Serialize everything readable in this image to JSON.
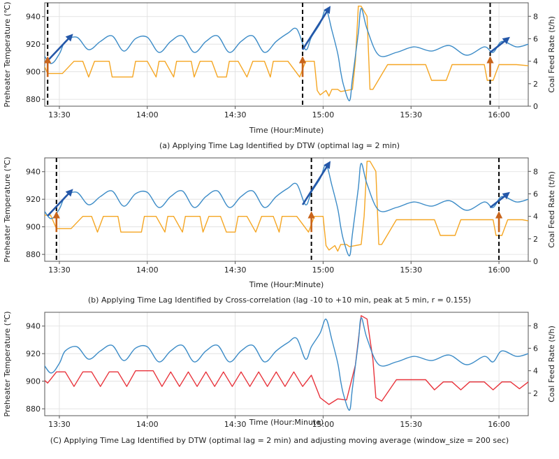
{
  "colors": {
    "temp_line": "#3b8bc7",
    "feed_line": "#f5a623",
    "feed_smooth": "#e8333b",
    "vline": "#000000",
    "arrow_blue": "#2457a8",
    "arrow_orange": "#c8641b",
    "grid": "#dddddd",
    "axis": "#555555"
  },
  "chart_data": [
    {
      "type": "line",
      "panel": "a",
      "caption": "(a) Applying Time Lag Identified by DTW (optimal lag = 2 min)",
      "xlabel": "Time (Hour:Minute)",
      "ylabel": "Preheater Temperature (℃)",
      "y2label": "Coal Feed Rate (t/h)",
      "xlim": [
        805,
        970
      ],
      "x_ticks": [
        810,
        840,
        870,
        900,
        930,
        960
      ],
      "x_tick_labels": [
        "13:30",
        "14:00",
        "14:30",
        "15:00",
        "15:30",
        "16:00"
      ],
      "ylim": [
        875,
        950
      ],
      "y_ticks": [
        880,
        900,
        920,
        940
      ],
      "y2lim": [
        0,
        9.2
      ],
      "y2_ticks": [
        0,
        2,
        4,
        6,
        8
      ],
      "grid": true,
      "feed_style": "raw",
      "temperature_series": {
        "name": "Preheater Temperature",
        "x": [
          796,
          800,
          803,
          807,
          810,
          812,
          816,
          820,
          824,
          828,
          832,
          836,
          840,
          844,
          848,
          852,
          856,
          860,
          864,
          868,
          872,
          876,
          880,
          884,
          888,
          891,
          894,
          896,
          899,
          901,
          903,
          905,
          906,
          907,
          909,
          910,
          912,
          913,
          915,
          919,
          925,
          931,
          937,
          943,
          949,
          955,
          958,
          961,
          966,
          970
        ],
        "y": [
          908,
          907,
          916,
          906,
          913,
          922,
          925,
          916,
          922,
          926,
          915,
          924,
          925,
          914,
          922,
          926,
          914,
          922,
          926,
          914,
          922,
          926,
          914,
          922,
          928,
          931,
          916,
          925,
          935,
          945,
          930,
          913,
          900,
          890,
          879,
          895,
          928,
          946,
          931,
          912,
          914,
          918,
          915,
          919,
          912,
          918,
          914,
          922,
          918,
          920
        ]
      },
      "feed_series": {
        "name": "Coal Feed Rate",
        "x": [
          800,
          802,
          804,
          806,
          811,
          815,
          818,
          820,
          822,
          827,
          828,
          835,
          836,
          840,
          843,
          844,
          846,
          849,
          850,
          855,
          856,
          858,
          862,
          864,
          867,
          868,
          871,
          874,
          876,
          880,
          882,
          883,
          888,
          892,
          894,
          897,
          898,
          899,
          901,
          902,
          903,
          905,
          906,
          910,
          911,
          912,
          913,
          915,
          916,
          917,
          922,
          935,
          937,
          942,
          944,
          955,
          956,
          958,
          960,
          966,
          970
        ],
        "y": [
          2.9,
          4.1,
          4.1,
          2.9,
          2.9,
          4.0,
          4.0,
          2.6,
          4.0,
          4.0,
          2.6,
          2.6,
          4.0,
          4.0,
          2.6,
          4.0,
          4.0,
          2.6,
          4.0,
          4.0,
          2.6,
          4.0,
          4.0,
          2.6,
          2.6,
          4.0,
          4.0,
          2.6,
          4.0,
          4.0,
          2.6,
          4.0,
          4.0,
          2.6,
          4.0,
          4.0,
          1.4,
          1.0,
          1.4,
          0.9,
          1.5,
          1.5,
          1.3,
          1.5,
          4.0,
          8.9,
          8.9,
          8.0,
          1.5,
          1.5,
          3.7,
          3.7,
          2.3,
          2.3,
          3.7,
          3.7,
          2.3,
          2.3,
          3.7,
          3.7,
          3.6
        ]
      },
      "vertical_lines_x": [
        806,
        893,
        957
      ],
      "blue_arrows": [
        [
          806,
          908,
          814,
          926
        ],
        [
          893,
          916,
          902,
          946
        ],
        [
          957,
          914,
          963,
          924
        ]
      ],
      "orange_arrows": [
        [
          806,
          2.6,
          806,
          4.2
        ],
        [
          893,
          2.6,
          893,
          4.2
        ],
        [
          957,
          2.6,
          957,
          4.2
        ]
      ]
    },
    {
      "type": "line",
      "panel": "b",
      "caption": "(b) Applying Time Lag Identified by Cross-correlation (lag -10 to +10 min, peak at 5 min, r = 0.155)",
      "xlabel": "Time (Hour:Minute)",
      "ylabel": "Preheater Temperature (℃)",
      "y2label": "Coal Feed Rate (t/h)",
      "xlim": [
        805,
        970
      ],
      "x_ticks": [
        810,
        840,
        870,
        900,
        930,
        960
      ],
      "x_tick_labels": [
        "13:30",
        "14:00",
        "14:30",
        "15:00",
        "15:30",
        "16:00"
      ],
      "ylim": [
        875,
        950
      ],
      "y_ticks": [
        880,
        900,
        920,
        940
      ],
      "y2lim": [
        0,
        9.2
      ],
      "y2_ticks": [
        0,
        2,
        4,
        6,
        8
      ],
      "grid": true,
      "feed_style": "raw",
      "temperature_series": {
        "name": "Preheater Temperature",
        "x": [
          796,
          800,
          803,
          807,
          810,
          812,
          816,
          820,
          824,
          828,
          832,
          836,
          840,
          844,
          848,
          852,
          856,
          860,
          864,
          868,
          872,
          876,
          880,
          884,
          888,
          891,
          894,
          896,
          899,
          901,
          903,
          905,
          906,
          907,
          909,
          910,
          912,
          913,
          915,
          919,
          925,
          931,
          937,
          943,
          949,
          955,
          958,
          961,
          966,
          970
        ],
        "y": [
          908,
          907,
          916,
          906,
          913,
          922,
          925,
          916,
          922,
          926,
          915,
          924,
          925,
          914,
          922,
          926,
          914,
          922,
          926,
          914,
          922,
          926,
          914,
          922,
          928,
          931,
          916,
          925,
          935,
          945,
          930,
          913,
          900,
          890,
          879,
          895,
          928,
          946,
          931,
          912,
          914,
          918,
          915,
          919,
          912,
          918,
          914,
          922,
          918,
          920
        ]
      },
      "feed_series": {
        "name": "Coal Feed Rate",
        "x": [
          803,
          805,
          807,
          809,
          814,
          818,
          821,
          823,
          825,
          830,
          831,
          838,
          839,
          843,
          846,
          847,
          849,
          852,
          853,
          858,
          859,
          861,
          865,
          867,
          870,
          871,
          874,
          877,
          879,
          883,
          885,
          886,
          891,
          895,
          897,
          900,
          901,
          902,
          904,
          905,
          906,
          908,
          909,
          913,
          914,
          915,
          916,
          918,
          919,
          920,
          925,
          938,
          940,
          945,
          947,
          958,
          959,
          961,
          963,
          968,
          970
        ],
        "y": [
          2.9,
          4.1,
          4.1,
          2.9,
          2.9,
          4.0,
          4.0,
          2.6,
          4.0,
          4.0,
          2.6,
          2.6,
          4.0,
          4.0,
          2.6,
          4.0,
          4.0,
          2.6,
          4.0,
          4.0,
          2.6,
          4.0,
          4.0,
          2.6,
          2.6,
          4.0,
          4.0,
          2.6,
          4.0,
          4.0,
          2.6,
          4.0,
          4.0,
          2.6,
          4.0,
          4.0,
          1.4,
          1.0,
          1.4,
          0.9,
          1.5,
          1.5,
          1.3,
          1.5,
          4.0,
          8.9,
          8.9,
          8.0,
          1.5,
          1.5,
          3.7,
          3.7,
          2.3,
          2.3,
          3.7,
          3.7,
          2.3,
          2.3,
          3.7,
          3.7,
          3.6
        ]
      },
      "vertical_lines_x": [
        809,
        896,
        960
      ],
      "blue_arrows": [
        [
          806,
          908,
          814,
          926
        ],
        [
          893,
          916,
          902,
          946
        ],
        [
          957,
          914,
          963,
          924
        ]
      ],
      "orange_arrows": [
        [
          809,
          2.6,
          809,
          4.2
        ],
        [
          896,
          2.6,
          896,
          4.2
        ],
        [
          960,
          2.6,
          960,
          4.2
        ]
      ]
    },
    {
      "type": "line",
      "panel": "c",
      "caption": "(C) Applying Time Lag Identified by DTW (optimal lag = 2 min) and adjusting moving average (window_size = 200 sec)",
      "xlabel": "Time (Hour:Minute)",
      "ylabel": "Preheater Temperature (℃)",
      "y2label": "Coal Feed Rate (t/h)",
      "xlim": [
        805,
        970
      ],
      "x_ticks": [
        810,
        840,
        870,
        900,
        930,
        960
      ],
      "x_tick_labels": [
        "13:30",
        "14:00",
        "14:30",
        "15:00",
        "15:30",
        "16:00"
      ],
      "ylim": [
        875,
        950
      ],
      "y_ticks": [
        880,
        900,
        920,
        940
      ],
      "y2lim": [
        0,
        9.2
      ],
      "y2_ticks": [
        2,
        4,
        6,
        8
      ],
      "grid": true,
      "feed_style": "smoothed",
      "temperature_series": {
        "name": "Preheater Temperature",
        "x": [
          796,
          800,
          803,
          807,
          810,
          812,
          816,
          820,
          824,
          828,
          832,
          836,
          840,
          844,
          848,
          852,
          856,
          860,
          864,
          868,
          872,
          876,
          880,
          884,
          888,
          891,
          894,
          896,
          899,
          901,
          903,
          905,
          906,
          907,
          909,
          910,
          912,
          913,
          915,
          919,
          925,
          931,
          937,
          943,
          949,
          955,
          958,
          961,
          966,
          970
        ],
        "y": [
          908,
          907,
          916,
          906,
          913,
          922,
          925,
          916,
          922,
          926,
          915,
          924,
          925,
          914,
          922,
          926,
          914,
          922,
          926,
          914,
          922,
          926,
          914,
          922,
          928,
          931,
          916,
          925,
          935,
          945,
          930,
          913,
          900,
          890,
          879,
          895,
          928,
          946,
          931,
          912,
          914,
          918,
          915,
          919,
          912,
          918,
          914,
          922,
          918,
          920
        ]
      },
      "feed_series": {
        "name": "Coal Feed Rate (moving average)",
        "x": [
          803,
          806,
          809,
          812,
          815,
          818,
          821,
          824,
          827,
          830,
          833,
          836,
          839,
          842,
          845,
          848,
          851,
          854,
          857,
          860,
          863,
          866,
          869,
          872,
          875,
          878,
          881,
          884,
          887,
          890,
          893,
          896,
          899,
          902,
          905,
          908,
          911,
          913,
          915,
          917,
          918,
          920,
          925,
          935,
          938,
          941,
          944,
          947,
          950,
          955,
          958,
          961,
          964,
          967,
          970
        ],
        "y": [
          3.6,
          2.9,
          3.9,
          3.9,
          2.6,
          3.9,
          3.9,
          2.6,
          3.9,
          3.9,
          2.6,
          4.0,
          4.0,
          4.0,
          2.6,
          3.9,
          2.6,
          3.9,
          2.6,
          3.9,
          2.6,
          3.9,
          2.6,
          3.9,
          2.6,
          3.9,
          2.6,
          3.9,
          2.6,
          3.9,
          2.6,
          3.6,
          1.6,
          1.0,
          1.5,
          1.4,
          4.5,
          8.9,
          8.6,
          5.0,
          1.6,
          1.3,
          3.2,
          3.2,
          2.3,
          3.0,
          3.0,
          2.3,
          3.0,
          3.0,
          2.3,
          3.0,
          3.0,
          2.4,
          3.0
        ]
      },
      "vertical_lines_x": [],
      "blue_arrows": [],
      "orange_arrows": []
    }
  ]
}
